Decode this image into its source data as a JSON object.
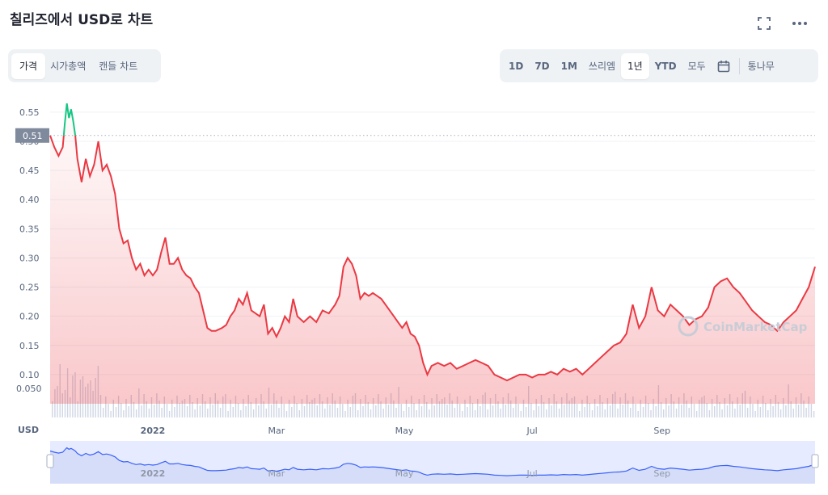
{
  "title": "칠리즈에서 USD로 차트",
  "icons": {
    "expand": "expand-icon",
    "more": "more-icon",
    "calendar": "calendar-icon",
    "watermark": "coinmarketcap-logo"
  },
  "chart_type_tabs": [
    "가격",
    "시가총액",
    "캔들 차트"
  ],
  "time_tabs": [
    "1D",
    "7D",
    "1M",
    "쓰리엠",
    "1년",
    "YTD",
    "모두"
  ],
  "log_label": "통나무",
  "watermark": "CoinMarketCap",
  "currency_label": "USD",
  "colors": {
    "up": "#16c784",
    "down": "#ea3943",
    "volume": "#cfd6e4",
    "nav_line": "#3861fb",
    "nav_fill": "#e6ebff"
  },
  "chart_data": {
    "type": "area",
    "series_name": "",
    "current_price_label": "0.51",
    "reference_price": 0.51,
    "yticks": [
      "0.55",
      "0.50",
      "0.45",
      "0.40",
      "0.35",
      "0.30",
      "0.25",
      "0.20",
      "0.15",
      "0.10"
    ],
    "ylim": [
      0.05,
      0.59
    ],
    "volume_tick": "0.050",
    "xticks": [
      "2022",
      "Mar",
      "May",
      "Jul",
      "Sep"
    ],
    "grid": true,
    "x_start": "2021-11-13",
    "x_end": "2022-11-13",
    "price_points": [
      [
        "2021-11-13",
        0.51
      ],
      [
        "2021-11-15",
        0.49
      ],
      [
        "2021-11-17",
        0.475
      ],
      [
        "2021-11-19",
        0.49
      ],
      [
        "2021-11-20",
        0.53
      ],
      [
        "2021-11-21",
        0.565
      ],
      [
        "2021-11-22",
        0.54
      ],
      [
        "2021-11-23",
        0.555
      ],
      [
        "2021-11-24",
        0.535
      ],
      [
        "2021-11-25",
        0.51
      ],
      [
        "2021-11-26",
        0.47
      ],
      [
        "2021-11-28",
        0.43
      ],
      [
        "2021-11-30",
        0.47
      ],
      [
        "2021-12-02",
        0.44
      ],
      [
        "2021-12-04",
        0.46
      ],
      [
        "2021-12-06",
        0.5
      ],
      [
        "2021-12-08",
        0.45
      ],
      [
        "2021-12-10",
        0.46
      ],
      [
        "2021-12-12",
        0.44
      ],
      [
        "2021-12-14",
        0.41
      ],
      [
        "2021-12-16",
        0.35
      ],
      [
        "2021-12-18",
        0.325
      ],
      [
        "2021-12-20",
        0.33
      ],
      [
        "2021-12-22",
        0.3
      ],
      [
        "2021-12-24",
        0.28
      ],
      [
        "2021-12-26",
        0.29
      ],
      [
        "2021-12-28",
        0.27
      ],
      [
        "2021-12-30",
        0.28
      ],
      [
        "2022-01-01",
        0.27
      ],
      [
        "2022-01-03",
        0.28
      ],
      [
        "2022-01-05",
        0.31
      ],
      [
        "2022-01-07",
        0.335
      ],
      [
        "2022-01-09",
        0.29
      ],
      [
        "2022-01-11",
        0.29
      ],
      [
        "2022-01-13",
        0.3
      ],
      [
        "2022-01-15",
        0.28
      ],
      [
        "2022-01-17",
        0.27
      ],
      [
        "2022-01-19",
        0.265
      ],
      [
        "2022-01-21",
        0.25
      ],
      [
        "2022-01-23",
        0.24
      ],
      [
        "2022-01-25",
        0.21
      ],
      [
        "2022-01-27",
        0.18
      ],
      [
        "2022-01-29",
        0.175
      ],
      [
        "2022-01-31",
        0.175
      ],
      [
        "2022-02-03",
        0.18
      ],
      [
        "2022-02-05",
        0.185
      ],
      [
        "2022-02-07",
        0.2
      ],
      [
        "2022-02-09",
        0.21
      ],
      [
        "2022-02-11",
        0.23
      ],
      [
        "2022-02-13",
        0.22
      ],
      [
        "2022-02-15",
        0.24
      ],
      [
        "2022-02-17",
        0.21
      ],
      [
        "2022-02-19",
        0.205
      ],
      [
        "2022-02-21",
        0.2
      ],
      [
        "2022-02-23",
        0.22
      ],
      [
        "2022-02-25",
        0.17
      ],
      [
        "2022-02-27",
        0.18
      ],
      [
        "2022-03-01",
        0.165
      ],
      [
        "2022-03-03",
        0.18
      ],
      [
        "2022-03-05",
        0.2
      ],
      [
        "2022-03-07",
        0.19
      ],
      [
        "2022-03-09",
        0.23
      ],
      [
        "2022-03-11",
        0.2
      ],
      [
        "2022-03-14",
        0.19
      ],
      [
        "2022-03-17",
        0.2
      ],
      [
        "2022-03-20",
        0.19
      ],
      [
        "2022-03-23",
        0.21
      ],
      [
        "2022-03-26",
        0.205
      ],
      [
        "2022-03-29",
        0.22
      ],
      [
        "2022-03-31",
        0.235
      ],
      [
        "2022-04-02",
        0.285
      ],
      [
        "2022-04-04",
        0.3
      ],
      [
        "2022-04-06",
        0.29
      ],
      [
        "2022-04-08",
        0.27
      ],
      [
        "2022-04-10",
        0.23
      ],
      [
        "2022-04-12",
        0.24
      ],
      [
        "2022-04-14",
        0.235
      ],
      [
        "2022-04-16",
        0.24
      ],
      [
        "2022-04-18",
        0.235
      ],
      [
        "2022-04-20",
        0.23
      ],
      [
        "2022-04-22",
        0.22
      ],
      [
        "2022-04-24",
        0.21
      ],
      [
        "2022-04-26",
        0.2
      ],
      [
        "2022-04-28",
        0.19
      ],
      [
        "2022-04-30",
        0.18
      ],
      [
        "2022-05-02",
        0.19
      ],
      [
        "2022-05-04",
        0.17
      ],
      [
        "2022-05-06",
        0.165
      ],
      [
        "2022-05-08",
        0.15
      ],
      [
        "2022-05-10",
        0.12
      ],
      [
        "2022-05-12",
        0.1
      ],
      [
        "2022-05-14",
        0.115
      ],
      [
        "2022-05-17",
        0.12
      ],
      [
        "2022-05-20",
        0.115
      ],
      [
        "2022-05-23",
        0.12
      ],
      [
        "2022-05-26",
        0.11
      ],
      [
        "2022-05-29",
        0.115
      ],
      [
        "2022-06-01",
        0.12
      ],
      [
        "2022-06-04",
        0.125
      ],
      [
        "2022-06-07",
        0.12
      ],
      [
        "2022-06-10",
        0.115
      ],
      [
        "2022-06-13",
        0.1
      ],
      [
        "2022-06-16",
        0.095
      ],
      [
        "2022-06-19",
        0.09
      ],
      [
        "2022-06-22",
        0.095
      ],
      [
        "2022-06-25",
        0.1
      ],
      [
        "2022-06-28",
        0.1
      ],
      [
        "2022-07-01",
        0.095
      ],
      [
        "2022-07-04",
        0.1
      ],
      [
        "2022-07-07",
        0.1
      ],
      [
        "2022-07-10",
        0.105
      ],
      [
        "2022-07-13",
        0.1
      ],
      [
        "2022-07-16",
        0.11
      ],
      [
        "2022-07-19",
        0.105
      ],
      [
        "2022-07-22",
        0.11
      ],
      [
        "2022-07-25",
        0.1
      ],
      [
        "2022-07-28",
        0.11
      ],
      [
        "2022-07-31",
        0.12
      ],
      [
        "2022-08-03",
        0.13
      ],
      [
        "2022-08-06",
        0.14
      ],
      [
        "2022-08-09",
        0.15
      ],
      [
        "2022-08-12",
        0.155
      ],
      [
        "2022-08-15",
        0.17
      ],
      [
        "2022-08-18",
        0.22
      ],
      [
        "2022-08-21",
        0.18
      ],
      [
        "2022-08-24",
        0.2
      ],
      [
        "2022-08-27",
        0.25
      ],
      [
        "2022-08-30",
        0.21
      ],
      [
        "2022-09-02",
        0.2
      ],
      [
        "2022-09-05",
        0.22
      ],
      [
        "2022-09-08",
        0.21
      ],
      [
        "2022-09-11",
        0.2
      ],
      [
        "2022-09-14",
        0.185
      ],
      [
        "2022-09-17",
        0.195
      ],
      [
        "2022-09-20",
        0.2
      ],
      [
        "2022-09-23",
        0.215
      ],
      [
        "2022-09-26",
        0.25
      ],
      [
        "2022-09-29",
        0.26
      ],
      [
        "2022-10-02",
        0.265
      ],
      [
        "2022-10-05",
        0.25
      ],
      [
        "2022-10-08",
        0.24
      ],
      [
        "2022-10-11",
        0.225
      ],
      [
        "2022-10-14",
        0.21
      ],
      [
        "2022-10-17",
        0.2
      ],
      [
        "2022-10-20",
        0.19
      ],
      [
        "2022-10-23",
        0.185
      ],
      [
        "2022-10-26",
        0.175
      ],
      [
        "2022-10-29",
        0.19
      ],
      [
        "2022-11-01",
        0.2
      ],
      [
        "2022-11-04",
        0.21
      ],
      [
        "2022-11-07",
        0.23
      ],
      [
        "2022-11-10",
        0.25
      ],
      [
        "2022-11-13",
        0.285
      ]
    ]
  }
}
